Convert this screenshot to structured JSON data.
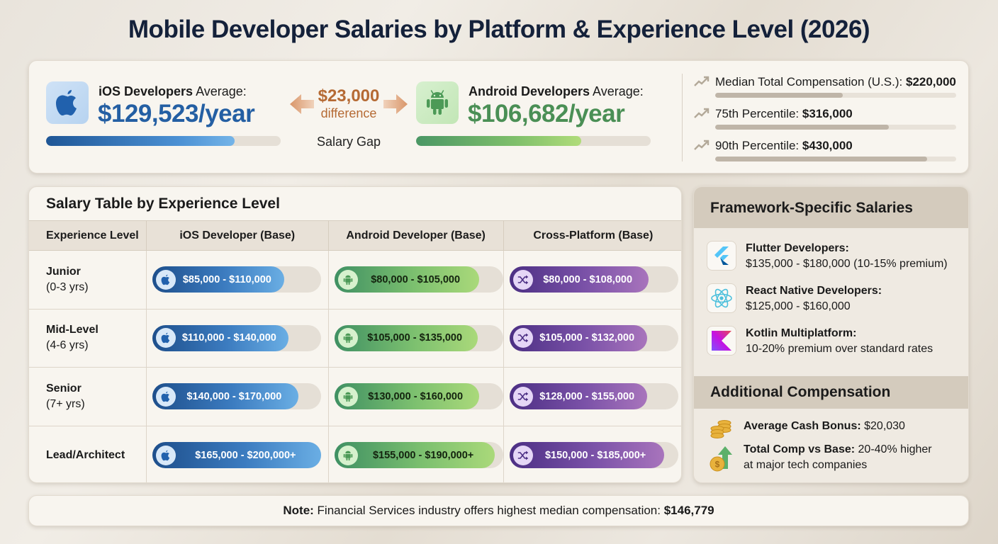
{
  "title": "Mobile Developer Salaries by Platform & Experience Level (2026)",
  "summary": {
    "ios": {
      "label_bold": "iOS Developers",
      "label_rest": " Average:",
      "amount": "$129,523/year",
      "icon": "apple-icon",
      "color": "#245fa3"
    },
    "android": {
      "label_bold": "Android Developers",
      "label_rest": " Average:",
      "amount": "$106,682/year",
      "icon": "android-icon",
      "color": "#4a8f55"
    },
    "gap": {
      "amount": "$23,000",
      "sub": "difference",
      "label": "Salary Gap"
    },
    "stats": [
      {
        "label": "Median Total Compensation (U.S.): ",
        "value": "$220,000",
        "bar_pct": 53
      },
      {
        "label": "75th Percentile: ",
        "value": "$316,000",
        "bar_pct": 72
      },
      {
        "label": "90th Percentile: ",
        "value": "$430,000",
        "bar_pct": 88
      }
    ]
  },
  "table": {
    "title": "Salary Table by Experience Level",
    "headers": [
      "Experience Level",
      "iOS Developer (Base)",
      "Android Developer (Base)",
      "Cross-Platform (Base)"
    ],
    "rows": [
      {
        "level": "Junior",
        "years": "(0-3 yrs)",
        "ios": "$85,000 - $110,000",
        "android": "$80,000 - $105,000",
        "cross": "$80,000 - $108,000",
        "ios_w": 186,
        "and_w": 204,
        "cp_w": 196
      },
      {
        "level": "Mid-Level",
        "years": "(4-6 yrs)",
        "ios": "$110,000 - $140,000",
        "android": "$105,000 - $135,000",
        "cross": "$105,000 - $132,000",
        "ios_w": 192,
        "and_w": 202,
        "cp_w": 194
      },
      {
        "level": "Senior",
        "years": "(7+ yrs)",
        "ios": "$140,000 - $170,000",
        "android": "$130,000 - $160,000",
        "cross": "$128,000 - $155,000",
        "ios_w": 206,
        "and_w": 204,
        "cp_w": 194
      },
      {
        "level": "Lead/Architect",
        "years": "",
        "ios": "$165,000 - $200,000+",
        "android": "$155,000 - $190,000+",
        "cross": "$150,000 - $185,000+",
        "ios_w": 238,
        "and_w": 226,
        "cp_w": 218
      }
    ]
  },
  "frameworks": {
    "title": "Framework-Specific Salaries",
    "items": [
      {
        "name": "Flutter Developers:",
        "value": "$135,000 - $180,000 (10-15% premium)",
        "icon": "flutter-icon"
      },
      {
        "name": "React Native Developers:",
        "value": "$125,000 - $160,000",
        "icon": "react-icon"
      },
      {
        "name": "Kotlin Multiplatform:",
        "value": "10-20% premium over standard rates",
        "icon": "kotlin-icon"
      }
    ]
  },
  "additional": {
    "title": "Additional Compensation",
    "items": [
      {
        "label": "Average Cash Bonus:",
        "value": " $20,030",
        "value2": "",
        "icon": "coins-icon"
      },
      {
        "label": "Total Comp vs Base:",
        "value": " 20-40% higher",
        "value2": "at major tech companies",
        "icon": "dollar-up-arrow-icon"
      }
    ]
  },
  "note": {
    "label": "Note:",
    "text": " Financial Services industry offers highest median compensation: ",
    "value": "$146,779"
  },
  "chart_data": {
    "type": "table",
    "title": "Mobile Developer Salaries by Platform & Experience Level (2026)",
    "averages": {
      "iOS": 129523,
      "Android": 106682,
      "difference": 23000
    },
    "total_compensation_us": {
      "median": 220000,
      "p75": 316000,
      "p90": 430000
    },
    "categories": [
      "Junior (0-3 yrs)",
      "Mid-Level (4-6 yrs)",
      "Senior (7+ yrs)",
      "Lead/Architect"
    ],
    "series": [
      {
        "name": "iOS Developer (Base)",
        "min": [
          85000,
          110000,
          140000,
          165000
        ],
        "max": [
          110000,
          140000,
          170000,
          200000
        ]
      },
      {
        "name": "Android Developer (Base)",
        "min": [
          80000,
          105000,
          130000,
          155000
        ],
        "max": [
          105000,
          135000,
          160000,
          190000
        ]
      },
      {
        "name": "Cross-Platform (Base)",
        "min": [
          80000,
          105000,
          128000,
          150000
        ],
        "max": [
          108000,
          132000,
          155000,
          185000
        ]
      }
    ],
    "frameworks": [
      {
        "name": "Flutter",
        "min": 135000,
        "max": 180000,
        "premium": "10-15%"
      },
      {
        "name": "React Native",
        "min": 125000,
        "max": 160000
      },
      {
        "name": "Kotlin Multiplatform",
        "premium": "10-20%"
      }
    ],
    "additional": {
      "average_cash_bonus": 20030,
      "total_comp_vs_base": "20-40% higher"
    },
    "note_financial_services_median": 146779
  }
}
